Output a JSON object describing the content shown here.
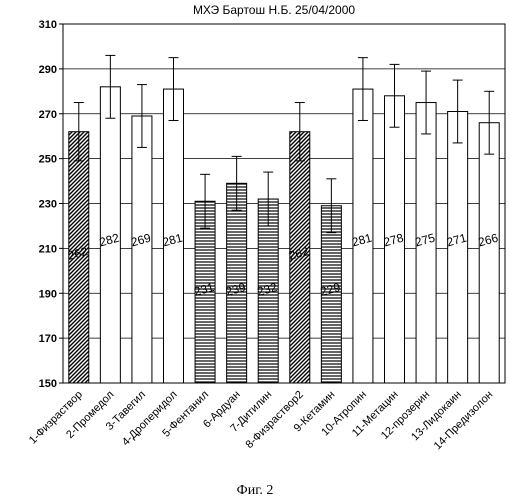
{
  "chart_data": {
    "type": "bar",
    "title": "МХЭ   Бартош Н.Б.   25/04/2000",
    "xlabel": "",
    "ylabel": "",
    "ylim": [
      150,
      310
    ],
    "yticks": [
      150,
      170,
      190,
      210,
      230,
      250,
      270,
      290,
      310
    ],
    "grid": true,
    "legend": "none",
    "error_bars": true,
    "categories": [
      "1-Физраствор",
      "2-Промедол",
      "3-Тавегил",
      "4-Дроперидол",
      "5-Фентанил",
      "6-Ардуан",
      "7-Дитилин",
      "8-Физраствор2",
      "9-Кетамин",
      "10-Атропин",
      "11-Метацин",
      "12-прозерин",
      "13-Лидокаин",
      "14-Предизолон"
    ],
    "values": [
      262,
      282,
      269,
      281,
      231,
      239,
      232,
      262,
      229,
      281,
      278,
      275,
      271,
      266
    ],
    "errors": [
      13,
      14,
      14,
      14,
      12,
      12,
      12,
      13,
      12,
      14,
      14,
      14,
      14,
      14
    ],
    "value_labels": [
      "262",
      "282",
      "269",
      "281",
      "231",
      "239",
      "232",
      "262",
      "229",
      "281",
      "278",
      "275",
      "271",
      "266"
    ],
    "bar_patterns": [
      "diagonal",
      "none",
      "none",
      "none",
      "horizontal",
      "horizontal",
      "horizontal",
      "diagonal",
      "horizontal",
      "none",
      "none",
      "none",
      "none",
      "none"
    ]
  },
  "caption": "Фиг. 2"
}
